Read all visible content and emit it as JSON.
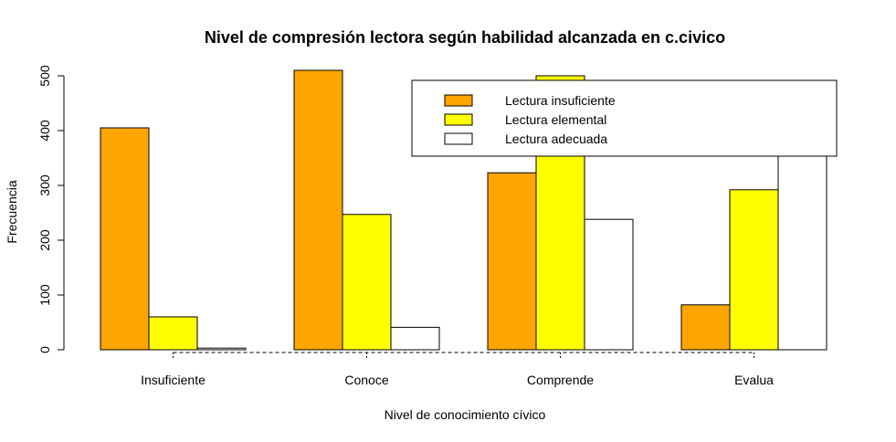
{
  "chart_data": {
    "type": "bar",
    "title": "Nivel de compresión lectora según habilidad alcanzada en c.civico",
    "xlabel": "Nivel de conocimiento cívico",
    "ylabel": "Frecuencia",
    "categories": [
      "Insuficiente",
      "Conoce",
      "Comprende",
      "Evalua"
    ],
    "series": [
      {
        "name": "Lectura insuficiente",
        "color": "#FFA500",
        "values": [
          405,
          510,
          323,
          82
        ]
      },
      {
        "name": "Lectura elemental",
        "color": "#FFFF00",
        "values": [
          60,
          247,
          500,
          292
        ]
      },
      {
        "name": "Lectura adecuada",
        "color": "#FFFFFF",
        "values": [
          3,
          41,
          238,
          374
        ]
      }
    ],
    "ylim": [
      0,
      510
    ],
    "yticks": [
      0,
      100,
      200,
      300,
      400,
      500
    ],
    "legend_position": "top-right",
    "grid": false
  }
}
